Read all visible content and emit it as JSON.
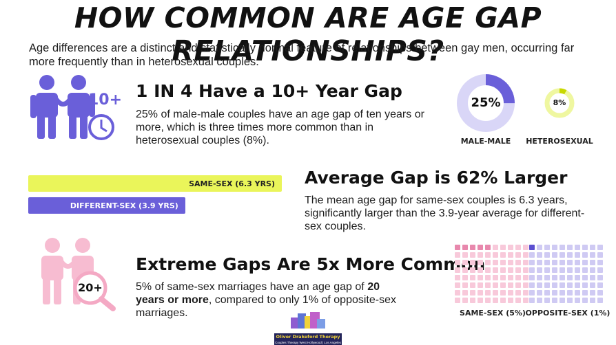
{
  "title": "HOW COMMON ARE AGE GAP RELATIONSHIPS?",
  "intro": "Age differences are a distinct and statistically normal feature of relationships between gay men, occurring far more frequently than in heterosexual couples.",
  "section1": {
    "icon_badge": "10+",
    "heading": "1 IN 4 Have a 10+ Year Gap",
    "body": "25% of male-male couples have an age gap of ten years or more, which is three times more common than in heterosexual couples (8%).",
    "donut_male": {
      "value": 25,
      "label": "25%",
      "caption": "MALE-MALE"
    },
    "donut_hetero": {
      "value": 8,
      "label": "8%",
      "caption": "HETEROSEXUAL"
    }
  },
  "section2": {
    "heading": "Average Gap is 62% Larger",
    "body": "The mean age gap for same-sex couples is 6.3 years, significantly larger than the 3.9-year average for different-sex couples.",
    "bars": [
      {
        "label": "SAME-SEX (6.3 YRS)",
        "value": 6.3,
        "color": "#eaf55a"
      },
      {
        "label": "DIFFERENT-SEX (3.9 YRS)",
        "value": 3.9,
        "color": "#6a5fd9"
      }
    ]
  },
  "section3": {
    "icon_badge": "20+",
    "heading": "Extreme Gaps Are 5x More Common",
    "body_before": "5% of same-sex marriages have an age gap of ",
    "body_bold": "20 years or more",
    "body_after": ", compared to only 1% of opposite-sex marriages.",
    "grid_same": {
      "caption": "SAME-SEX (5%)",
      "highlighted": 5
    },
    "grid_opposite": {
      "caption": "OPPOSITE-SEX (1%)",
      "highlighted": 1
    }
  },
  "logo": {
    "name": "Oliver Drakeford Therapy",
    "tagline": "Couples Therapy West Hollywood | Los Angeles"
  },
  "colors": {
    "purple": "#6a5fd9",
    "light_purple": "#d9d6f7",
    "yellow": "#e6f046",
    "pink": "#f4a9c4",
    "light_pink": "#fad3e1"
  }
}
